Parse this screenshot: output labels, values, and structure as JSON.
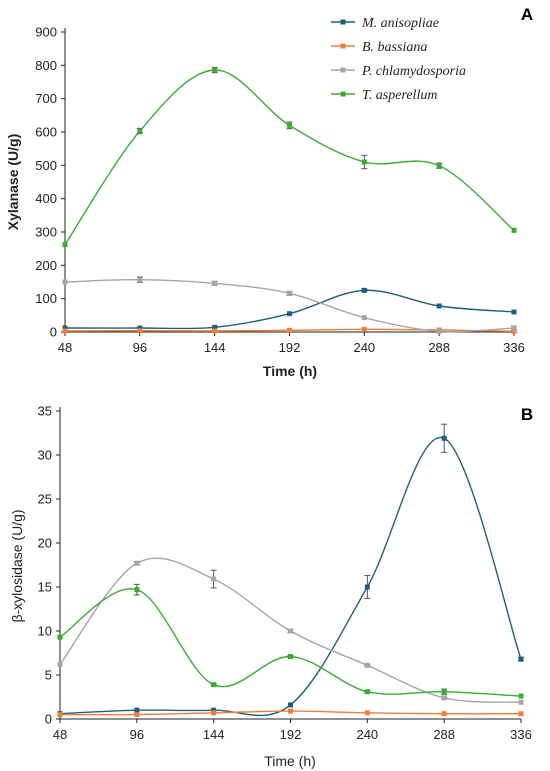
{
  "chart_data": [
    {
      "type": "line",
      "panel_label": "A",
      "xlabel": "Time (h)",
      "ylabel": "Xylanase (U/g)",
      "x": [
        48,
        96,
        144,
        192,
        240,
        288,
        336
      ],
      "xlim": [
        48,
        336
      ],
      "ylim": [
        0,
        900
      ],
      "yticks": [
        0,
        100,
        200,
        300,
        400,
        500,
        600,
        700,
        800,
        900
      ],
      "grid": false,
      "legend": "top-right",
      "series": [
        {
          "name": "M. anisopliae",
          "color": "#1f5f7a",
          "values": [
            12,
            12,
            14,
            55,
            125,
            78,
            60
          ],
          "errors": [
            0,
            0,
            0,
            0,
            4,
            0,
            0
          ]
        },
        {
          "name": "B. bassiana",
          "color": "#f07f3c",
          "values": [
            3,
            4,
            3,
            5,
            8,
            6,
            2
          ],
          "errors": [
            0,
            0,
            0,
            0,
            0,
            0,
            0
          ]
        },
        {
          "name": "P. chlamydosporia",
          "color": "#a6a6a6",
          "values": [
            150,
            157,
            146,
            116,
            43,
            2,
            12
          ],
          "errors": [
            0,
            8,
            6,
            6,
            0,
            0,
            6
          ]
        },
        {
          "name": "T. asperellum",
          "color": "#3aaa35",
          "values": [
            262,
            603,
            786,
            620,
            510,
            499,
            305
          ],
          "errors": [
            0,
            8,
            8,
            10,
            20,
            8,
            0
          ]
        }
      ]
    },
    {
      "type": "line",
      "panel_label": "B",
      "xlabel": "Time (h)",
      "ylabel": "β-xylosidase (U/g)",
      "x": [
        48,
        96,
        144,
        192,
        240,
        288,
        336
      ],
      "xlim": [
        48,
        336
      ],
      "ylim": [
        0,
        35
      ],
      "yticks": [
        0,
        5,
        10,
        15,
        20,
        25,
        30,
        35
      ],
      "grid": false,
      "legend": "none",
      "series": [
        {
          "color": "#1f5f7a",
          "values": [
            0.6,
            1.0,
            1.0,
            1.6,
            15.0,
            31.9,
            6.8
          ],
          "errors": [
            0,
            0,
            0,
            0,
            1.3,
            1.6,
            0.2
          ]
        },
        {
          "color": "#f07f3c",
          "values": [
            0.5,
            0.5,
            0.7,
            0.9,
            0.7,
            0.6,
            0.6
          ],
          "errors": [
            0,
            0,
            0,
            0,
            0,
            0,
            0
          ]
        },
        {
          "color": "#a6a6a6",
          "values": [
            6.2,
            17.7,
            15.9,
            10.0,
            6.1,
            2.4,
            1.9
          ],
          "errors": [
            0,
            0.2,
            1.0,
            0.2,
            0.1,
            0.1,
            0
          ]
        },
        {
          "color": "#3aaa35",
          "values": [
            9.3,
            14.7,
            3.9,
            7.1,
            3.1,
            3.1,
            2.6
          ],
          "errors": [
            0,
            0.6,
            0.1,
            0.1,
            0.1,
            0.3,
            0
          ]
        }
      ]
    }
  ]
}
